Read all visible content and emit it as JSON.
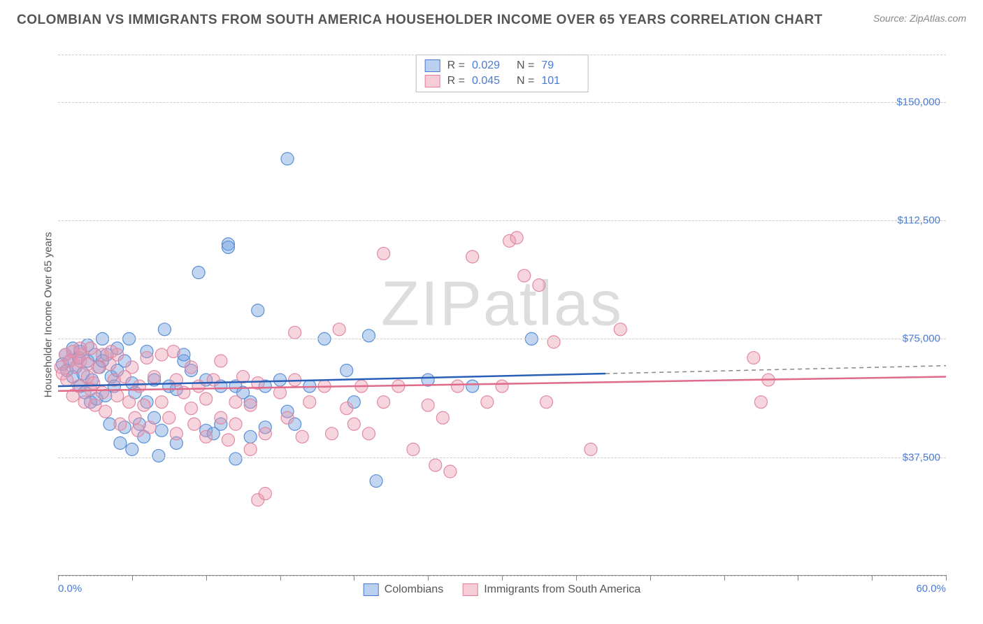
{
  "header": {
    "title": "COLOMBIAN VS IMMIGRANTS FROM SOUTH AMERICA HOUSEHOLDER INCOME OVER 65 YEARS CORRELATION CHART",
    "source_label": "Source: ",
    "source_name": "ZipAtlas.com"
  },
  "chart": {
    "type": "scatter",
    "watermark": "ZIPatlas",
    "ylabel": "Householder Income Over 65 years",
    "xlim": [
      0,
      60
    ],
    "ylim": [
      0,
      165000
    ],
    "yticks": [
      37500,
      75000,
      112500,
      150000
    ],
    "ytick_labels": [
      "$37,500",
      "$75,000",
      "$112,500",
      "$150,000"
    ],
    "xtick_positions": [
      0,
      5,
      10,
      15,
      20,
      25,
      30,
      35,
      40,
      45,
      50,
      55,
      60
    ],
    "x_end_labels": [
      "0.0%",
      "60.0%"
    ],
    "hgrid_at": [
      0,
      37500,
      75000,
      112500,
      150000,
      165000
    ],
    "background_color": "#ffffff",
    "grid_color": "#cccccc",
    "axis_color": "#888888",
    "text_color": "#555555",
    "value_color": "#4a7bd4",
    "series": [
      {
        "key": "colombians",
        "label": "Colombians",
        "swatch_fill": "#b9d1ef",
        "swatch_border": "#4a7bd4",
        "marker_fill": "rgba(120,165,225,0.45)",
        "marker_stroke": "#5a8fd6",
        "marker_radius": 9,
        "R": "0.029",
        "N": "79",
        "trend": {
          "x1": 0,
          "y1": 60000,
          "x2": 37,
          "y2": 64000,
          "color": "#2a5fb8",
          "width": 2.5,
          "dash_ext_x": 60,
          "dash_ext_y": 66500
        },
        "points": [
          [
            0.3,
            67000
          ],
          [
            0.5,
            70000
          ],
          [
            0.6,
            65000
          ],
          [
            0.8,
            68000
          ],
          [
            1.0,
            72000
          ],
          [
            1.0,
            63000
          ],
          [
            1.2,
            66000
          ],
          [
            1.4,
            69000
          ],
          [
            1.5,
            60000
          ],
          [
            1.5,
            71000
          ],
          [
            1.7,
            64000
          ],
          [
            1.8,
            58000
          ],
          [
            2.0,
            68000
          ],
          [
            2.0,
            73000
          ],
          [
            2.2,
            55000
          ],
          [
            2.3,
            62000
          ],
          [
            2.5,
            70000
          ],
          [
            2.6,
            56000
          ],
          [
            2.8,
            66000
          ],
          [
            3.0,
            68000
          ],
          [
            3.0,
            75000
          ],
          [
            3.2,
            57000
          ],
          [
            3.3,
            70000
          ],
          [
            3.5,
            48000
          ],
          [
            3.6,
            63000
          ],
          [
            3.8,
            60000
          ],
          [
            4.0,
            72000
          ],
          [
            4.0,
            65000
          ],
          [
            4.2,
            42000
          ],
          [
            4.5,
            47000
          ],
          [
            4.5,
            68000
          ],
          [
            4.8,
            75000
          ],
          [
            5.0,
            61000
          ],
          [
            5.0,
            40000
          ],
          [
            5.2,
            58000
          ],
          [
            5.5,
            48000
          ],
          [
            5.8,
            44000
          ],
          [
            6.0,
            71000
          ],
          [
            6.0,
            55000
          ],
          [
            6.5,
            62000
          ],
          [
            6.5,
            50000
          ],
          [
            6.8,
            38000
          ],
          [
            7.0,
            46000
          ],
          [
            7.2,
            78000
          ],
          [
            7.5,
            60000
          ],
          [
            8.0,
            59000
          ],
          [
            8.0,
            42000
          ],
          [
            8.5,
            68000
          ],
          [
            8.5,
            70000
          ],
          [
            9.0,
            65000
          ],
          [
            9.5,
            96000
          ],
          [
            10.0,
            46000
          ],
          [
            10.0,
            62000
          ],
          [
            10.5,
            45000
          ],
          [
            11.0,
            60000
          ],
          [
            11.0,
            48000
          ],
          [
            11.5,
            105000
          ],
          [
            11.5,
            104000
          ],
          [
            12.0,
            60000
          ],
          [
            12.0,
            37000
          ],
          [
            12.5,
            58000
          ],
          [
            13.0,
            44000
          ],
          [
            13.0,
            55000
          ],
          [
            13.5,
            84000
          ],
          [
            14.0,
            47000
          ],
          [
            14.0,
            60000
          ],
          [
            15.0,
            62000
          ],
          [
            15.5,
            52000
          ],
          [
            15.5,
            132000
          ],
          [
            16.0,
            48000
          ],
          [
            17.0,
            60000
          ],
          [
            18.0,
            75000
          ],
          [
            19.5,
            65000
          ],
          [
            20.0,
            55000
          ],
          [
            21.0,
            76000
          ],
          [
            21.5,
            30000
          ],
          [
            25.0,
            62000
          ],
          [
            28.0,
            60000
          ],
          [
            32.0,
            75000
          ]
        ]
      },
      {
        "key": "immigrants",
        "label": "Immigrants from South America",
        "swatch_fill": "#f5cdd6",
        "swatch_border": "#e77e9a",
        "marker_fill": "rgba(235,150,175,0.40)",
        "marker_stroke": "#e08aa2",
        "marker_radius": 9,
        "R": "0.045",
        "N": "101",
        "trend": {
          "x1": 0,
          "y1": 58500,
          "x2": 60,
          "y2": 63000,
          "color": "#e06a8a",
          "width": 2.5
        },
        "points": [
          [
            0.2,
            66000
          ],
          [
            0.3,
            64000
          ],
          [
            0.5,
            70000
          ],
          [
            0.6,
            62000
          ],
          [
            0.8,
            68000
          ],
          [
            1.0,
            57000
          ],
          [
            1.0,
            71000
          ],
          [
            1.2,
            66000
          ],
          [
            1.4,
            60000
          ],
          [
            1.5,
            68000
          ],
          [
            1.6,
            70000
          ],
          [
            1.8,
            55000
          ],
          [
            2.0,
            63000
          ],
          [
            2.0,
            67000
          ],
          [
            2.2,
            72000
          ],
          [
            2.4,
            61000
          ],
          [
            2.5,
            54000
          ],
          [
            2.7,
            66000
          ],
          [
            3.0,
            58000
          ],
          [
            3.0,
            70000
          ],
          [
            3.2,
            52000
          ],
          [
            3.5,
            67000
          ],
          [
            3.8,
            62000
          ],
          [
            4.0,
            57000
          ],
          [
            4.0,
            70000
          ],
          [
            4.2,
            48000
          ],
          [
            4.5,
            63000
          ],
          [
            4.8,
            55000
          ],
          [
            5.0,
            66000
          ],
          [
            5.2,
            50000
          ],
          [
            5.5,
            60000
          ],
          [
            5.8,
            54000
          ],
          [
            6.0,
            69000
          ],
          [
            6.2,
            47000
          ],
          [
            6.5,
            63000
          ],
          [
            7.0,
            55000
          ],
          [
            7.0,
            70000
          ],
          [
            7.5,
            50000
          ],
          [
            8.0,
            62000
          ],
          [
            8.0,
            45000
          ],
          [
            8.5,
            58000
          ],
          [
            9.0,
            53000
          ],
          [
            9.0,
            66000
          ],
          [
            9.5,
            60000
          ],
          [
            10.0,
            44000
          ],
          [
            10.0,
            56000
          ],
          [
            10.5,
            62000
          ],
          [
            11.0,
            50000
          ],
          [
            11.0,
            68000
          ],
          [
            11.5,
            43000
          ],
          [
            12.0,
            55000
          ],
          [
            12.0,
            48000
          ],
          [
            12.5,
            63000
          ],
          [
            13.0,
            40000
          ],
          [
            13.0,
            54000
          ],
          [
            13.5,
            61000
          ],
          [
            13.5,
            24000
          ],
          [
            14.0,
            45000
          ],
          [
            14.0,
            26000
          ],
          [
            15.0,
            58000
          ],
          [
            15.5,
            50000
          ],
          [
            16.0,
            62000
          ],
          [
            16.0,
            77000
          ],
          [
            16.5,
            44000
          ],
          [
            17.0,
            55000
          ],
          [
            18.0,
            60000
          ],
          [
            18.5,
            45000
          ],
          [
            19.0,
            78000
          ],
          [
            19.5,
            53000
          ],
          [
            20.0,
            48000
          ],
          [
            20.5,
            60000
          ],
          [
            21.0,
            45000
          ],
          [
            22.0,
            102000
          ],
          [
            22.0,
            55000
          ],
          [
            23.0,
            60000
          ],
          [
            24.0,
            40000
          ],
          [
            25.0,
            54000
          ],
          [
            25.5,
            35000
          ],
          [
            26.0,
            50000
          ],
          [
            26.5,
            33000
          ],
          [
            27.0,
            60000
          ],
          [
            28.0,
            101000
          ],
          [
            29.0,
            55000
          ],
          [
            30.0,
            60000
          ],
          [
            30.5,
            106000
          ],
          [
            31.0,
            107000
          ],
          [
            31.5,
            95000
          ],
          [
            32.5,
            92000
          ],
          [
            33.0,
            55000
          ],
          [
            33.5,
            74000
          ],
          [
            36.0,
            40000
          ],
          [
            38.0,
            78000
          ],
          [
            47.0,
            69000
          ],
          [
            47.5,
            55000
          ],
          [
            48.0,
            62000
          ],
          [
            1.5,
            72000
          ],
          [
            2.2,
            59000
          ],
          [
            3.6,
            71000
          ],
          [
            5.4,
            46000
          ],
          [
            7.8,
            71000
          ],
          [
            9.2,
            48000
          ]
        ]
      }
    ],
    "legend_stats_labels": {
      "R": "R = ",
      "N": "N = "
    }
  }
}
